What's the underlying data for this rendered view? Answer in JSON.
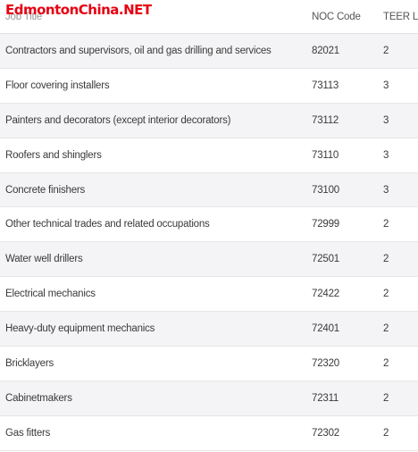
{
  "watermark": "EdmontonChina.NET",
  "table": {
    "headers": {
      "title": "Job Title",
      "noc": "NOC Code",
      "teer": "TEER Le"
    },
    "rows": [
      {
        "title": "Contractors and supervisors, oil and gas drilling and services",
        "noc": "82021",
        "teer": "2"
      },
      {
        "title": "Floor covering installers",
        "noc": "73113",
        "teer": "3"
      },
      {
        "title": "Painters and decorators (except interior decorators)",
        "noc": "73112",
        "teer": "3"
      },
      {
        "title": "Roofers and shinglers",
        "noc": "73110",
        "teer": "3"
      },
      {
        "title": "Concrete finishers",
        "noc": "73100",
        "teer": "3"
      },
      {
        "title": "Other technical trades and related occupations",
        "noc": "72999",
        "teer": "2"
      },
      {
        "title": "Water well drillers",
        "noc": "72501",
        "teer": "2"
      },
      {
        "title": "Electrical mechanics",
        "noc": "72422",
        "teer": "2"
      },
      {
        "title": "Heavy-duty equipment mechanics",
        "noc": "72401",
        "teer": "2"
      },
      {
        "title": "Bricklayers",
        "noc": "72320",
        "teer": "2"
      },
      {
        "title": "Cabinetmakers",
        "noc": "72311",
        "teer": "2"
      },
      {
        "title": "Gas fitters",
        "noc": "72302",
        "teer": "2"
      }
    ]
  }
}
